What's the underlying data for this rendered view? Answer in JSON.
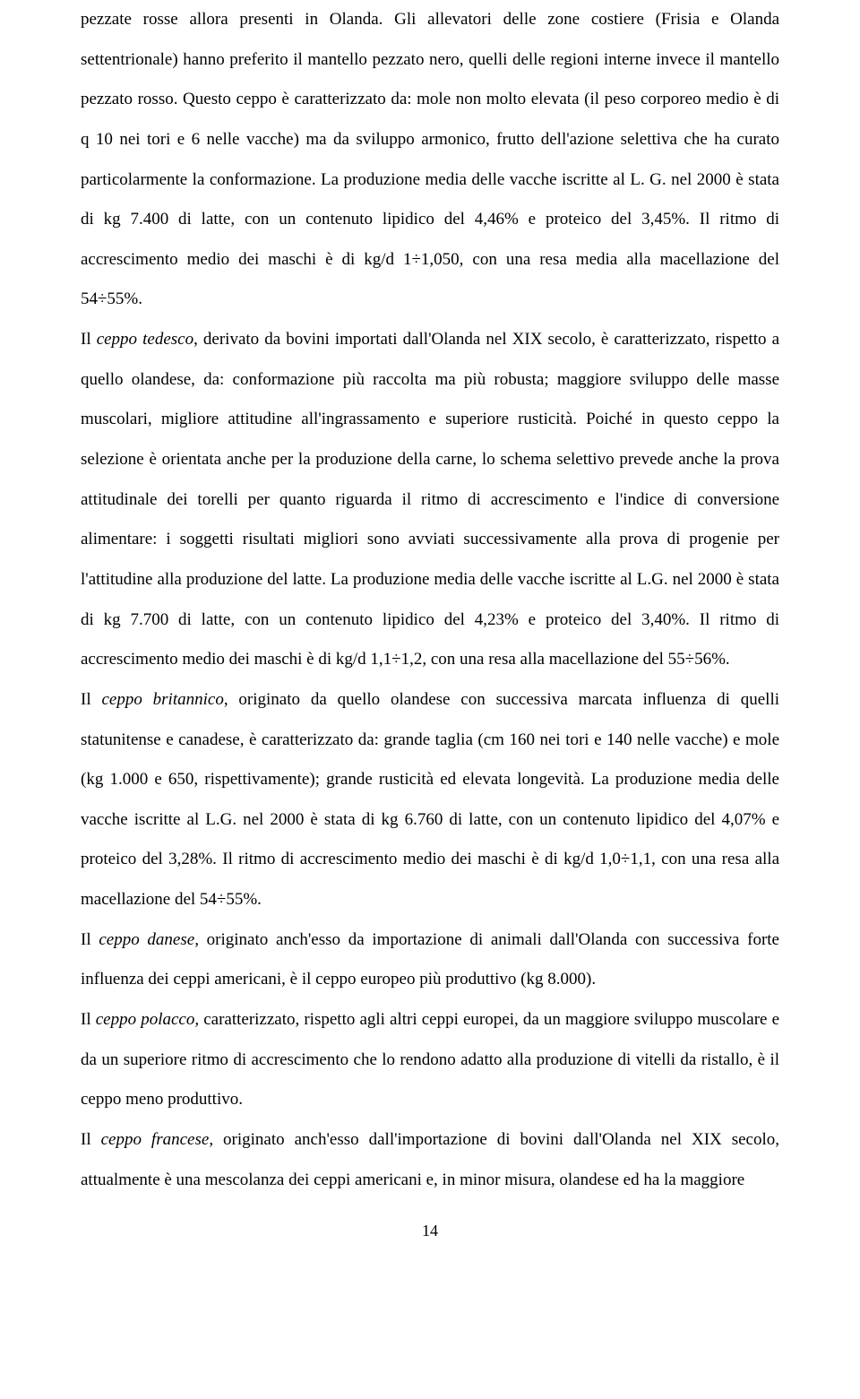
{
  "paragraphs": {
    "p1_part1": "pezzate rosse allora presenti in Olanda. Gli allevatori delle zone costiere (Frisia e Olanda settentrionale) hanno preferito il mantello pezzato nero, quelli delle regioni interne invece il mantello pezzato rosso. Questo ceppo è caratterizzato da: mole non molto elevata (il peso corporeo medio è di q 10 nei tori e 6 nelle vacche) ma da sviluppo armonico, frutto dell'azione selettiva che ha curato particolarmente la conformazione. La produzione media delle vacche iscritte al L. G. nel 2000 è stata di kg 7.400 di latte, con un contenuto lipidico del 4,46% e proteico del 3,45%. Il ritmo di accrescimento medio dei maschi è di kg/d 1÷1,050, con una resa media alla macellazione del 54÷55%.",
    "p2_label": "Il ",
    "p2_italic": "ceppo tedesco",
    "p2_rest": ", derivato da bovini importati dall'Olanda nel XIX secolo, è caratterizzato, rispetto a quello olandese, da: conformazione più raccolta ma più robusta; maggiore sviluppo delle masse muscolari, migliore attitudine all'ingrassamento e superiore rusticità. Poiché in questo ceppo la selezione è orientata anche per la produzione della carne, lo schema selettivo prevede anche la prova attitudinale dei torelli per quanto riguarda il ritmo di accrescimento e l'indice di conversione alimentare: i soggetti risultati migliori sono avviati successivamente alla prova di progenie per l'attitudine alla produzione del latte. La produzione media delle vacche iscritte al L.G. nel 2000 è stata di kg 7.700 di latte, con un contenuto lipidico del 4,23% e proteico del 3,40%. Il ritmo di accrescimento medio dei maschi è di kg/d 1,1÷1,2, con una resa alla macellazione del 55÷56%.",
    "p3_label": "Il ",
    "p3_italic": "ceppo britannico",
    "p3_rest": ", originato da quello olandese con successiva marcata influenza di quelli statunitense e canadese, è caratterizzato da: grande taglia (cm 160 nei tori e 140 nelle vacche) e mole (kg 1.000 e 650, rispettivamente); grande rusticità ed elevata longevità. La produzione media delle vacche iscritte al L.G. nel 2000 è stata di kg 6.760 di latte, con un contenuto lipidico del 4,07% e proteico del 3,28%. Il ritmo di accrescimento medio dei maschi è di kg/d 1,0÷1,1, con una resa alla macellazione del 54÷55%.",
    "p4_label": "Il ",
    "p4_italic": "ceppo danese,",
    "p4_rest": " originato anch'esso da importazione di animali dall'Olanda con successiva forte influenza dei ceppi americani, è il ceppo europeo più produttivo (kg 8.000).",
    "p5_label": "Il ",
    "p5_italic": "ceppo polacco,",
    "p5_rest": " caratterizzato, rispetto agli altri ceppi europei, da un maggiore sviluppo muscolare e da un superiore ritmo di accrescimento che lo rendono adatto alla produzione di vitelli da ristallo, è il ceppo meno produttivo.",
    "p6_label": "Il ",
    "p6_italic": "ceppo francese",
    "p6_rest": ", originato anch'esso dall'importazione di bovini dall'Olanda nel XIX secolo, attualmente è una mescolanza dei ceppi americani e, in minor misura, olandese ed ha la maggiore"
  },
  "page_number": "14"
}
